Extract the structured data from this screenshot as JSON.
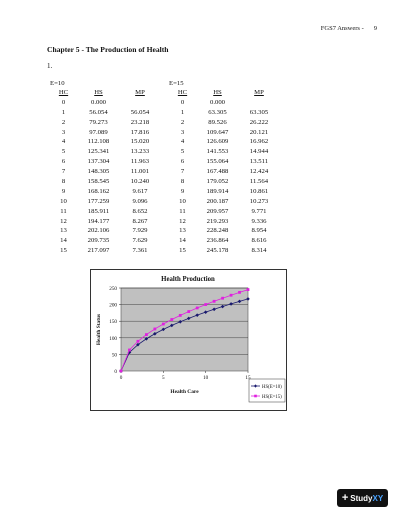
{
  "header": {
    "title": "FGS7 Answers -",
    "page_number": "9"
  },
  "chapter": "Chapter 5 - The Production of Health",
  "question": "1.",
  "tables": [
    {
      "title": "E=10",
      "columns": [
        "HC",
        "HS",
        "MP"
      ],
      "rows": [
        [
          "0",
          "0.000",
          ""
        ],
        [
          "1",
          "56.054",
          "56.054"
        ],
        [
          "2",
          "79.273",
          "23.218"
        ],
        [
          "3",
          "97.089",
          "17.816"
        ],
        [
          "4",
          "112.108",
          "15.020"
        ],
        [
          "5",
          "125.341",
          "13.233"
        ],
        [
          "6",
          "137.304",
          "11.963"
        ],
        [
          "7",
          "148.305",
          "11.001"
        ],
        [
          "8",
          "158.545",
          "10.240"
        ],
        [
          "9",
          "168.162",
          "9.617"
        ],
        [
          "10",
          "177.259",
          "9.096"
        ],
        [
          "11",
          "185.911",
          "8.652"
        ],
        [
          "12",
          "194.177",
          "8.267"
        ],
        [
          "13",
          "202.106",
          "7.929"
        ],
        [
          "14",
          "209.735",
          "7.629"
        ],
        [
          "15",
          "217.097",
          "7.361"
        ]
      ]
    },
    {
      "title": "E=15",
      "columns": [
        "HC",
        "HS",
        "MP"
      ],
      "rows": [
        [
          "0",
          "0.000",
          ""
        ],
        [
          "1",
          "63.305",
          "63.305"
        ],
        [
          "2",
          "89.526",
          "26.222"
        ],
        [
          "3",
          "109.647",
          "20.121"
        ],
        [
          "4",
          "126.609",
          "16.962"
        ],
        [
          "5",
          "141.553",
          "14.944"
        ],
        [
          "6",
          "155.064",
          "13.511"
        ],
        [
          "7",
          "167.488",
          "12.424"
        ],
        [
          "8",
          "179.052",
          "11.564"
        ],
        [
          "9",
          "189.914",
          "10.861"
        ],
        [
          "10",
          "200.187",
          "10.273"
        ],
        [
          "11",
          "209.957",
          "9.771"
        ],
        [
          "12",
          "219.293",
          "9.336"
        ],
        [
          "13",
          "228.248",
          "8.954"
        ],
        [
          "14",
          "236.864",
          "8.616"
        ],
        [
          "15",
          "245.178",
          "8.314"
        ]
      ]
    }
  ],
  "chart_data": {
    "type": "line",
    "title": "Health Production",
    "xlabel": "Health Care",
    "ylabel": "Health Status",
    "x": [
      0,
      1,
      2,
      3,
      4,
      5,
      6,
      7,
      8,
      9,
      10,
      11,
      12,
      13,
      14,
      15
    ],
    "xticks": [
      0,
      5,
      10,
      15
    ],
    "yticks": [
      0,
      50,
      100,
      150,
      200,
      250
    ],
    "xlim": [
      0,
      15
    ],
    "ylim": [
      0,
      250
    ],
    "grid": true,
    "legend_position": "bottom-right",
    "series": [
      {
        "name": "HS(E=10)",
        "color": "#1a1a6e",
        "marker": "diamond",
        "values": [
          0,
          56.054,
          79.273,
          97.089,
          112.108,
          125.341,
          137.304,
          148.305,
          158.545,
          168.162,
          177.259,
          185.911,
          194.177,
          202.106,
          209.735,
          217.097
        ]
      },
      {
        "name": "HS(E=15)",
        "color": "#e020e0",
        "marker": "square",
        "values": [
          0,
          63.305,
          89.526,
          109.647,
          126.609,
          141.553,
          155.064,
          167.488,
          179.052,
          189.914,
          200.187,
          209.957,
          219.293,
          228.248,
          236.864,
          245.178
        ]
      }
    ],
    "plot_background": "#c0c0c0"
  },
  "logo": {
    "plus": "+",
    "word": "Study",
    "accent": "XY"
  }
}
